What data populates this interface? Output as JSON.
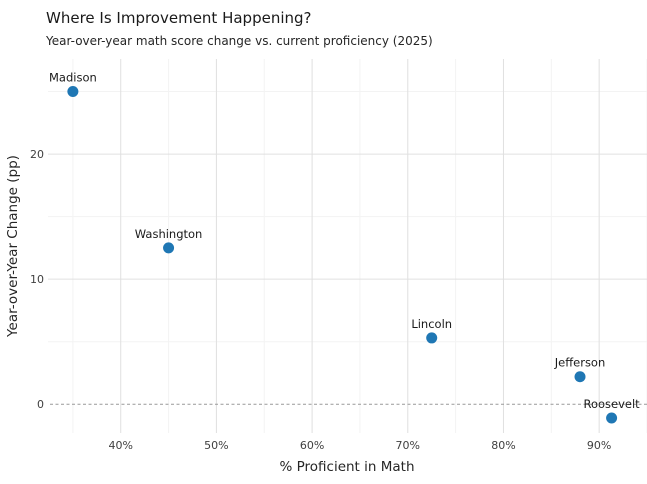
{
  "chart_data": {
    "type": "scatter",
    "title": "Where Is Improvement Happening?",
    "subtitle": "Year-over-year math score change vs. current proficiency (2025)",
    "xlabel": "% Proficient in Math",
    "ylabel": "Year-over-Year Change (pp)",
    "xlim": [
      32.4,
      95
    ],
    "ylim": [
      -2.3,
      27.6
    ],
    "x_ticks": [
      40,
      50,
      60,
      70,
      80,
      90
    ],
    "x_tick_suffix": "%",
    "y_ticks": [
      0,
      10,
      20
    ],
    "x_minor_ticks": [
      35,
      45,
      55,
      65,
      75,
      85,
      95
    ],
    "y_minor_ticks": [
      5,
      15,
      25
    ],
    "grid": true,
    "legend": "none",
    "zero_line": {
      "y": 0,
      "style": "dashed"
    },
    "points": [
      {
        "label": "Madison",
        "x": 35,
        "y": 25.0
      },
      {
        "label": "Washington",
        "x": 45,
        "y": 12.5
      },
      {
        "label": "Lincoln",
        "x": 72.5,
        "y": 5.3
      },
      {
        "label": "Jefferson",
        "x": 88,
        "y": 2.2
      },
      {
        "label": "Roosevelt",
        "x": 91.3,
        "y": -1.1
      }
    ],
    "colors": {
      "point": "#1f77b4",
      "grid_major": "#e0e0e0",
      "grid_minor": "#f3f3f3",
      "zero_line": "#999999",
      "background": "#ffffff"
    }
  }
}
